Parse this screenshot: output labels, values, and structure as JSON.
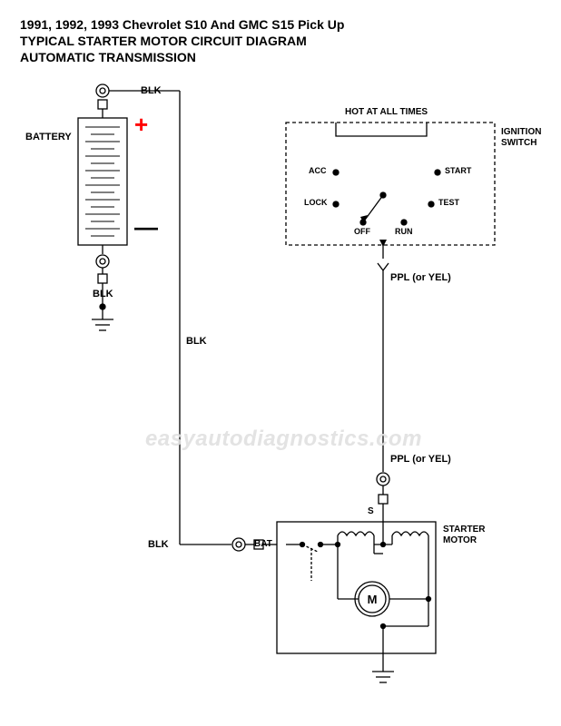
{
  "title": {
    "line1": "1991, 1992, 1993 Chevrolet S10 And GMC S15 Pick Up",
    "line2": "TYPICAL STARTER MOTOR CIRCUIT DIAGRAM",
    "line3": "AUTOMATIC TRANSMISSION"
  },
  "labels": {
    "battery": "BATTERY",
    "battery_top_wire": "BLK",
    "battery_bottom_wire": "BLK",
    "wire_vertical_left": "BLK",
    "wire_to_starter": "BLK",
    "ignition_header": "HOT AT ALL TIMES",
    "ignition_switch": "IGNITION SWITCH",
    "acc": "ACC",
    "lock": "LOCK",
    "off": "OFF",
    "run": "RUN",
    "test": "TEST",
    "start": "START",
    "ppl1": "PPL (or YEL)",
    "ppl2": "PPL (or YEL)",
    "bat": "BAT",
    "s": "S",
    "starter_motor": "STARTER MOTOR",
    "motor_m": "M"
  },
  "symbols": {
    "plus": "+",
    "minus": "—"
  },
  "watermark": "easyautodiagnostics.com",
  "colors": {
    "line": "#000000",
    "accent": "#ff0000",
    "background": "#ffffff",
    "watermark": "#dddddd"
  },
  "diagram": {
    "type": "schematic",
    "stroke_width": 1.3,
    "dash": "4 3"
  }
}
